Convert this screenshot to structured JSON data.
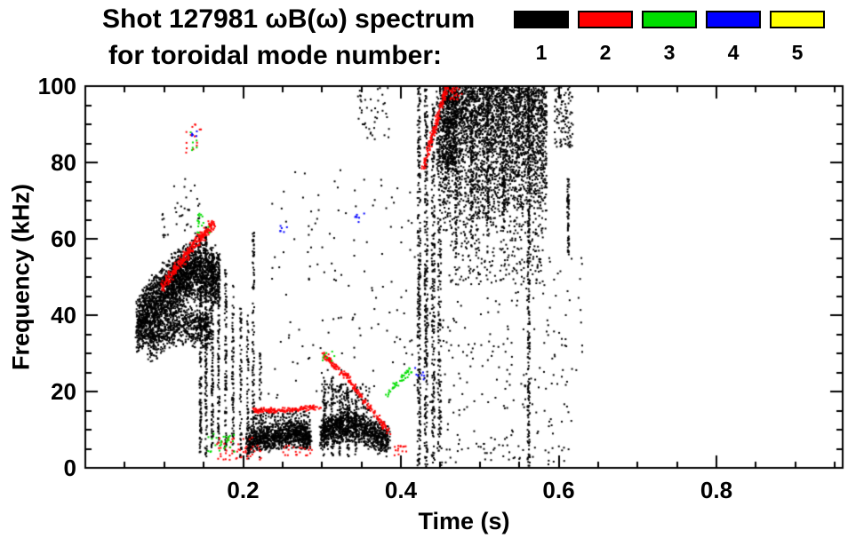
{
  "chart_data": {
    "type": "scatter",
    "title": "Shot 127981 ωB(ω) spectrum",
    "subtitle": "for toroidal mode number:",
    "xlabel": "Time (s)",
    "ylabel": "Frequency (kHz)",
    "xlim": [
      0.0,
      0.96
    ],
    "ylim": [
      0,
      100
    ],
    "xticks": [
      0.2,
      0.4,
      0.6,
      0.8
    ],
    "xtick_labels": [
      "0.2",
      "0.4",
      "0.6",
      "0.8"
    ],
    "yticks": [
      0,
      20,
      40,
      60,
      80,
      100
    ],
    "ytick_labels": [
      "0",
      "20",
      "40",
      "60",
      "80",
      "100"
    ],
    "x_minor_step": 0.05,
    "y_minor_step": 5,
    "grid": false,
    "legend_position": "top-right",
    "legend": {
      "entries": [
        {
          "label": "1",
          "color": "#000000"
        },
        {
          "label": "2",
          "color": "#ff0000"
        },
        {
          "label": "3",
          "color": "#00dd00"
        },
        {
          "label": "4",
          "color": "#0000ff"
        },
        {
          "label": "5",
          "color": "#ffff00"
        }
      ]
    },
    "clusters": [
      {
        "mode": 1,
        "kind": "curve",
        "pts": [
          [
            0.065,
            37
          ],
          [
            0.09,
            43
          ],
          [
            0.115,
            49
          ],
          [
            0.14,
            52
          ],
          [
            0.17,
            49
          ]
        ],
        "spread": 9,
        "n": 2400
      },
      {
        "mode": 1,
        "kind": "curve",
        "pts": [
          [
            0.08,
            33
          ],
          [
            0.12,
            38
          ],
          [
            0.16,
            36
          ]
        ],
        "spread": 6,
        "n": 700
      },
      {
        "mode": 1,
        "kind": "vline",
        "t": 0.146,
        "f": [
          4,
          60
        ],
        "n": 150
      },
      {
        "mode": 1,
        "kind": "vline",
        "t": 0.153,
        "f": [
          3,
          63
        ],
        "n": 160
      },
      {
        "mode": 1,
        "kind": "vline",
        "t": 0.161,
        "f": [
          5,
          58
        ],
        "n": 130
      },
      {
        "mode": 1,
        "kind": "vline",
        "t": 0.169,
        "f": [
          6,
          56
        ],
        "n": 110
      },
      {
        "mode": 1,
        "kind": "vline",
        "t": 0.178,
        "f": [
          4,
          52
        ],
        "n": 95
      },
      {
        "mode": 1,
        "kind": "vline",
        "t": 0.187,
        "f": [
          3,
          48
        ],
        "n": 80
      },
      {
        "mode": 1,
        "kind": "vline",
        "t": 0.197,
        "f": [
          2,
          44
        ],
        "n": 65
      },
      {
        "mode": 1,
        "kind": "vline",
        "t": 0.206,
        "f": [
          2,
          40
        ],
        "n": 55
      },
      {
        "mode": 1,
        "kind": "vline",
        "t": 0.213,
        "f": [
          4,
          62
        ],
        "n": 90
      },
      {
        "mode": 1,
        "kind": "vline",
        "t": 0.222,
        "f": [
          2,
          30
        ],
        "n": 40
      },
      {
        "mode": 1,
        "kind": "curve",
        "pts": [
          [
            0.205,
            7
          ],
          [
            0.235,
            8
          ],
          [
            0.265,
            9
          ],
          [
            0.285,
            8
          ]
        ],
        "spread": 4,
        "n": 1000
      },
      {
        "mode": 1,
        "kind": "box",
        "t": [
          0.21,
          0.285
        ],
        "f": [
          11,
          15
        ],
        "n": 120
      },
      {
        "mode": 1,
        "kind": "curve",
        "pts": [
          [
            0.298,
            9
          ],
          [
            0.325,
            11
          ],
          [
            0.355,
            10
          ],
          [
            0.385,
            7
          ]
        ],
        "spread": 5,
        "n": 1100
      },
      {
        "mode": 1,
        "kind": "vline",
        "t": 0.303,
        "f": [
          3,
          24
        ],
        "n": 45
      },
      {
        "mode": 1,
        "kind": "vline",
        "t": 0.313,
        "f": [
          3,
          24
        ],
        "n": 45
      },
      {
        "mode": 1,
        "kind": "vline",
        "t": 0.323,
        "f": [
          3,
          22
        ],
        "n": 45
      },
      {
        "mode": 1,
        "kind": "vline",
        "t": 0.333,
        "f": [
          3,
          20
        ],
        "n": 40
      },
      {
        "mode": 1,
        "kind": "vline",
        "t": 0.343,
        "f": [
          3,
          18
        ],
        "n": 35
      },
      {
        "mode": 1,
        "kind": "box",
        "t": [
          0.3,
          0.36
        ],
        "f": [
          15,
          22
        ],
        "n": 130
      },
      {
        "mode": 1,
        "kind": "box",
        "t": [
          0.23,
          0.42
        ],
        "f": [
          18,
          78
        ],
        "n": 130
      },
      {
        "mode": 1,
        "kind": "box",
        "t": [
          0.095,
          0.145
        ],
        "f": [
          60,
          76
        ],
        "n": 40
      },
      {
        "mode": 1,
        "kind": "box",
        "t": [
          0.345,
          0.385
        ],
        "f": [
          86,
          100
        ],
        "n": 45
      },
      {
        "mode": 1,
        "kind": "vline",
        "t": 0.423,
        "f": [
          0,
          100
        ],
        "n": 280,
        "jitter": 0.004
      },
      {
        "mode": 1,
        "kind": "vline",
        "t": 0.432,
        "f": [
          0,
          100
        ],
        "n": 260,
        "jitter": 0.004
      },
      {
        "mode": 1,
        "kind": "vline",
        "t": 0.441,
        "f": [
          2,
          96
        ],
        "n": 210,
        "jitter": 0.004
      },
      {
        "mode": 1,
        "kind": "vline",
        "t": 0.449,
        "f": [
          4,
          92
        ],
        "n": 170,
        "jitter": 0.004
      },
      {
        "mode": 1,
        "kind": "box",
        "t": [
          0.452,
          0.585
        ],
        "f": [
          60,
          100
        ],
        "n": 3200,
        "pow": 0.55
      },
      {
        "mode": 1,
        "kind": "box",
        "t": [
          0.445,
          0.47
        ],
        "f": [
          78,
          100
        ],
        "n": 350
      },
      {
        "mode": 1,
        "kind": "box",
        "t": [
          0.46,
          0.58
        ],
        "f": [
          48,
          62
        ],
        "n": 200
      },
      {
        "mode": 1,
        "kind": "vline",
        "t": 0.47,
        "f": [
          55,
          100
        ],
        "n": 80
      },
      {
        "mode": 1,
        "kind": "vline",
        "t": 0.49,
        "f": [
          58,
          100
        ],
        "n": 80
      },
      {
        "mode": 1,
        "kind": "vline",
        "t": 0.51,
        "f": [
          60,
          100
        ],
        "n": 80
      },
      {
        "mode": 1,
        "kind": "vline",
        "t": 0.53,
        "f": [
          62,
          100
        ],
        "n": 80
      },
      {
        "mode": 1,
        "kind": "vline",
        "t": 0.562,
        "f": [
          0,
          100
        ],
        "n": 240,
        "jitter": 0.003
      },
      {
        "mode": 1,
        "kind": "box",
        "t": [
          0.43,
          0.61
        ],
        "f": [
          4,
          48
        ],
        "n": 170
      },
      {
        "mode": 1,
        "kind": "box",
        "t": [
          0.44,
          0.62
        ],
        "f": [
          0,
          6
        ],
        "n": 45
      },
      {
        "mode": 1,
        "kind": "vline",
        "t": 0.612,
        "f": [
          55,
          76
        ],
        "n": 70
      },
      {
        "mode": 1,
        "kind": "box",
        "t": [
          0.595,
          0.618
        ],
        "f": [
          84,
          100
        ],
        "n": 110
      },
      {
        "mode": 1,
        "kind": "box",
        "t": [
          0.58,
          0.63
        ],
        "f": [
          10,
          55
        ],
        "n": 35
      },
      {
        "mode": 2,
        "kind": "curve",
        "pts": [
          [
            0.096,
            47
          ],
          [
            0.118,
            53
          ],
          [
            0.14,
            59
          ],
          [
            0.163,
            64
          ]
        ],
        "spread": 2,
        "n": 280
      },
      {
        "mode": 2,
        "kind": "box",
        "t": [
          0.125,
          0.148
        ],
        "f": [
          82,
          90
        ],
        "n": 14
      },
      {
        "mode": 2,
        "kind": "curve",
        "pts": [
          [
            0.212,
            15
          ],
          [
            0.255,
            15
          ],
          [
            0.298,
            16
          ]
        ],
        "spread": 0.8,
        "n": 150
      },
      {
        "mode": 2,
        "kind": "curve",
        "pts": [
          [
            0.301,
            30
          ],
          [
            0.33,
            24
          ],
          [
            0.36,
            16
          ],
          [
            0.386,
            9
          ]
        ],
        "spread": 1.2,
        "n": 190
      },
      {
        "mode": 2,
        "kind": "box",
        "t": [
          0.165,
          0.225
        ],
        "f": [
          2,
          8
        ],
        "n": 55
      },
      {
        "mode": 2,
        "kind": "box",
        "t": [
          0.25,
          0.29
        ],
        "f": [
          3,
          6
        ],
        "n": 22
      },
      {
        "mode": 2,
        "kind": "curve",
        "pts": [
          [
            0.428,
            78
          ],
          [
            0.44,
            87
          ],
          [
            0.451,
            95
          ],
          [
            0.459,
            100
          ]
        ],
        "spread": 1.5,
        "n": 170
      },
      {
        "mode": 2,
        "kind": "box",
        "t": [
          0.462,
          0.478
        ],
        "f": [
          96,
          100
        ],
        "n": 30
      },
      {
        "mode": 2,
        "kind": "box",
        "t": [
          0.39,
          0.41
        ],
        "f": [
          2,
          6
        ],
        "n": 14
      },
      {
        "mode": 3,
        "kind": "box",
        "t": [
          0.142,
          0.158
        ],
        "f": [
          61,
          67
        ],
        "n": 16
      },
      {
        "mode": 3,
        "kind": "box",
        "t": [
          0.153,
          0.19
        ],
        "f": [
          4,
          9
        ],
        "n": 28
      },
      {
        "mode": 3,
        "kind": "curve",
        "pts": [
          [
            0.382,
            19
          ],
          [
            0.399,
            23
          ],
          [
            0.414,
            26
          ]
        ],
        "spread": 1.2,
        "n": 40
      },
      {
        "mode": 3,
        "kind": "box",
        "t": [
          0.3,
          0.316
        ],
        "f": [
          28,
          31
        ],
        "n": 8
      },
      {
        "mode": 3,
        "kind": "box",
        "t": [
          0.128,
          0.142
        ],
        "f": [
          83,
          88
        ],
        "n": 6
      },
      {
        "mode": 4,
        "kind": "box",
        "t": [
          0.247,
          0.257
        ],
        "f": [
          61,
          64
        ],
        "n": 6
      },
      {
        "mode": 4,
        "kind": "box",
        "t": [
          0.342,
          0.354
        ],
        "f": [
          64,
          67
        ],
        "n": 7
      },
      {
        "mode": 4,
        "kind": "box",
        "t": [
          0.418,
          0.43
        ],
        "f": [
          23,
          27
        ],
        "n": 7
      },
      {
        "mode": 4,
        "kind": "box",
        "t": [
          0.135,
          0.144
        ],
        "f": [
          86,
          90
        ],
        "n": 5
      }
    ]
  }
}
